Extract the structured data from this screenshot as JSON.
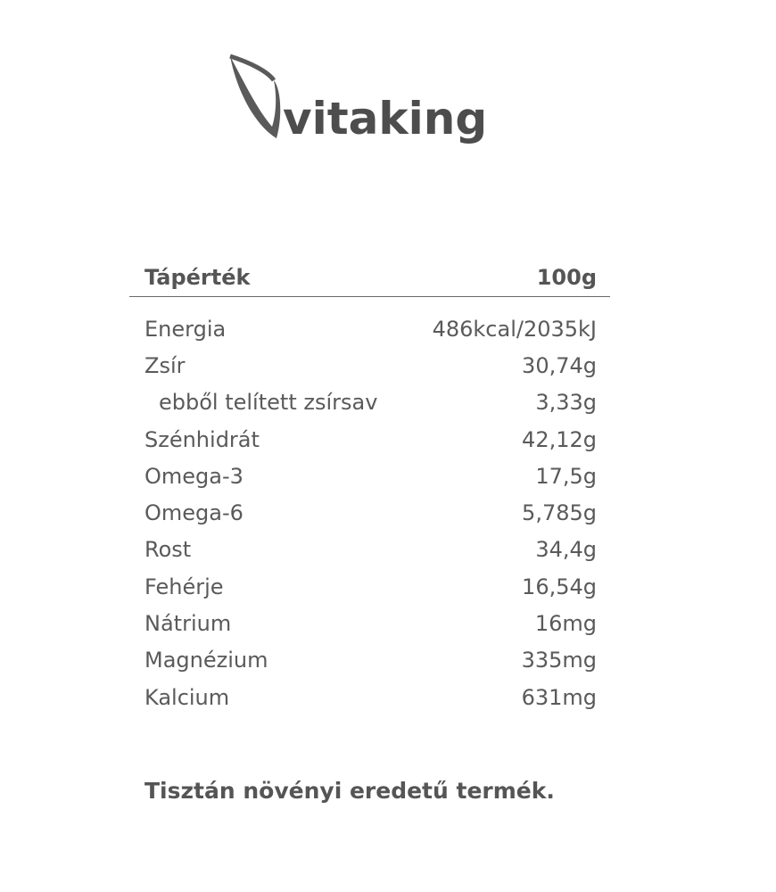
{
  "logo": {
    "brand": "vitaking",
    "icon": "leaf-icon"
  },
  "table": {
    "header": {
      "label": "Tápérték",
      "value": "100g"
    },
    "rows": [
      {
        "label": "Energia",
        "value": "486kcal/2035kJ"
      },
      {
        "label": "Zsír",
        "value": "30,74g"
      },
      {
        "label": "ebből telített zsírsav",
        "value": "3,33g"
      },
      {
        "label": "Szénhidrát",
        "value": "42,12g"
      },
      {
        "label": "Omega-3",
        "value": "17,5g"
      },
      {
        "label": "Omega-6",
        "value": "5,785g"
      },
      {
        "label": "Rost",
        "value": "34,4g"
      },
      {
        "label": "Fehérje",
        "value": "16,54g"
      },
      {
        "label": "Nátrium",
        "value": "16mg"
      },
      {
        "label": "Magnézium",
        "value": "335mg"
      },
      {
        "label": "Kalcium",
        "value": "631mg"
      }
    ]
  },
  "footer": "Tisztán növényi eredetű termék."
}
